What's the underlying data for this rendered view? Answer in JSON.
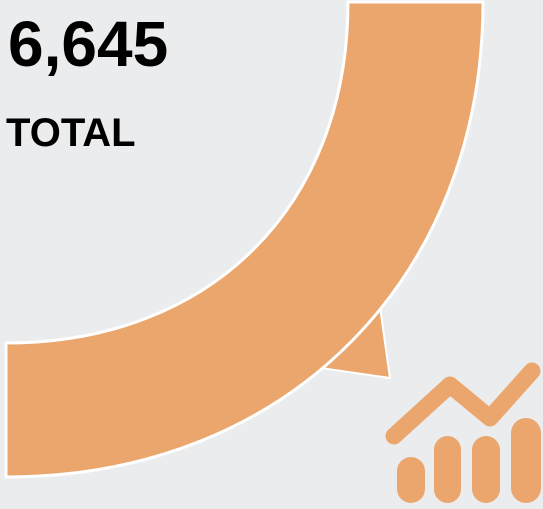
{
  "summary": {
    "total_value": "6,645",
    "total_label": "TOTAL"
  },
  "theme": {
    "background": "#ebecee",
    "accent": "#eba66e",
    "accent_stroke": "#ffffff",
    "text": "#000000"
  },
  "icons": {
    "trend": "growth-chart-icon"
  }
}
